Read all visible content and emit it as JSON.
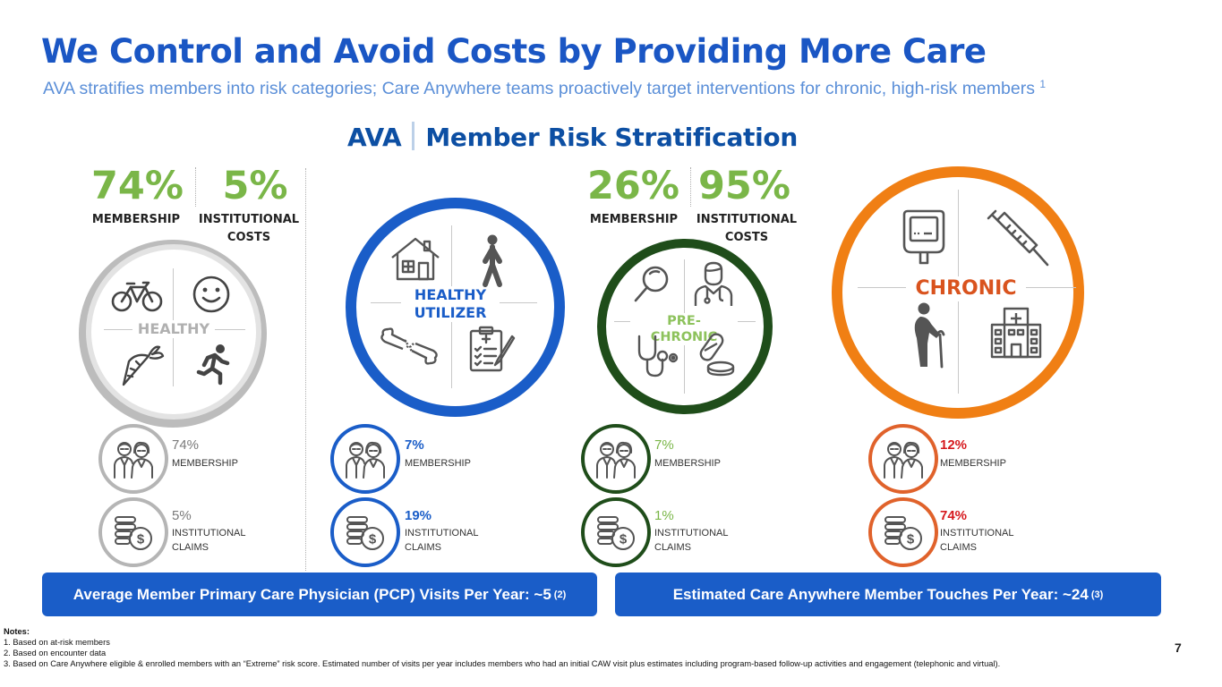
{
  "header": {
    "title": "We Control and Avoid Costs by Providing More Care",
    "subtitle": "AVA stratifies members into risk categories; Care Anywhere teams proactively target interventions for chronic, high-risk members",
    "subtitle_footnote": "1"
  },
  "section": {
    "left": "AVA",
    "right": "Member Risk Stratification"
  },
  "summary": {
    "low_risk": {
      "membership_value": "74%",
      "membership_label": "MEMBERSHIP",
      "cost_value": "5%",
      "cost_label_line1": "INSTITUTIONAL",
      "cost_label_line2": "COSTS"
    },
    "high_risk": {
      "membership_value": "26%",
      "membership_label": "MEMBERSHIP",
      "cost_value": "95%",
      "cost_label_line1": "INSTITUTIONAL",
      "cost_label_line2": "COSTS"
    }
  },
  "segments": [
    {
      "name_line1": "HEALTHY",
      "name_line2": "",
      "membership_value": "74%",
      "membership_label": "MEMBERSHIP",
      "claims_value": "5%",
      "claims_label_line1": "INSTITUTIONAL",
      "claims_label_line2": "CLAIMS"
    },
    {
      "name_line1": "HEALTHY",
      "name_line2": "UTILIZER",
      "membership_value": "7%",
      "membership_label": "MEMBERSHIP",
      "claims_value": "19%",
      "claims_label_line1": "INSTITUTIONAL",
      "claims_label_line2": "CLAIMS"
    },
    {
      "name_line1": "PRE-CHRONIC",
      "name_line2": "",
      "membership_value": "7%",
      "membership_label": "MEMBERSHIP",
      "claims_value": "1%",
      "claims_label_line1": "INSTITUTIONAL",
      "claims_label_line2": "CLAIMS"
    },
    {
      "name_line1": "CHRONIC",
      "name_line2": "",
      "membership_value": "12%",
      "membership_label": "MEMBERSHIP",
      "claims_value": "74%",
      "claims_label_line1": "INSTITUTIONAL",
      "claims_label_line2": "CLAIMS"
    }
  ],
  "banners": {
    "left_text": "Average Member Primary Care Physician (PCP) Visits Per Year: ~5",
    "left_footnote": "(2)",
    "right_text": "Estimated Care Anywhere Member Touches Per Year: ~24",
    "right_footnote": "(3)"
  },
  "notes": {
    "heading": "Notes:",
    "items": [
      "1. Based on at-risk members",
      "2. Based on encounter data",
      "3. Based on Care Anywhere eligible & enrolled members with an “Extreme” risk score. Estimated number of visits per year includes members who had an initial CAW visit plus estimates including program-based follow-up activities and engagement (telephonic and virtual)."
    ]
  },
  "page_number": "7",
  "colors": {
    "title_blue": "#1a56c4",
    "stat_green": "#7ab648",
    "healthy_gray": "#bdbdbd",
    "utilizer_blue": "#1a5dc8",
    "prechronic_green": "#1f4d1a",
    "chronic_orange": "#f07f14",
    "chronic_red": "#d6191e"
  },
  "icons": [
    "bicycle-icon",
    "smiley-icon",
    "carrot-icon",
    "runner-icon",
    "house-icon",
    "walker-icon",
    "bone-icon",
    "clipboard-icon",
    "magnifier-icon",
    "doctor-icon",
    "stethoscope-icon",
    "pill-icon",
    "glucometer-icon",
    "syringe-icon",
    "elderly-cane-icon",
    "hospital-icon",
    "seniors-icon",
    "coins-dollar-icon"
  ]
}
